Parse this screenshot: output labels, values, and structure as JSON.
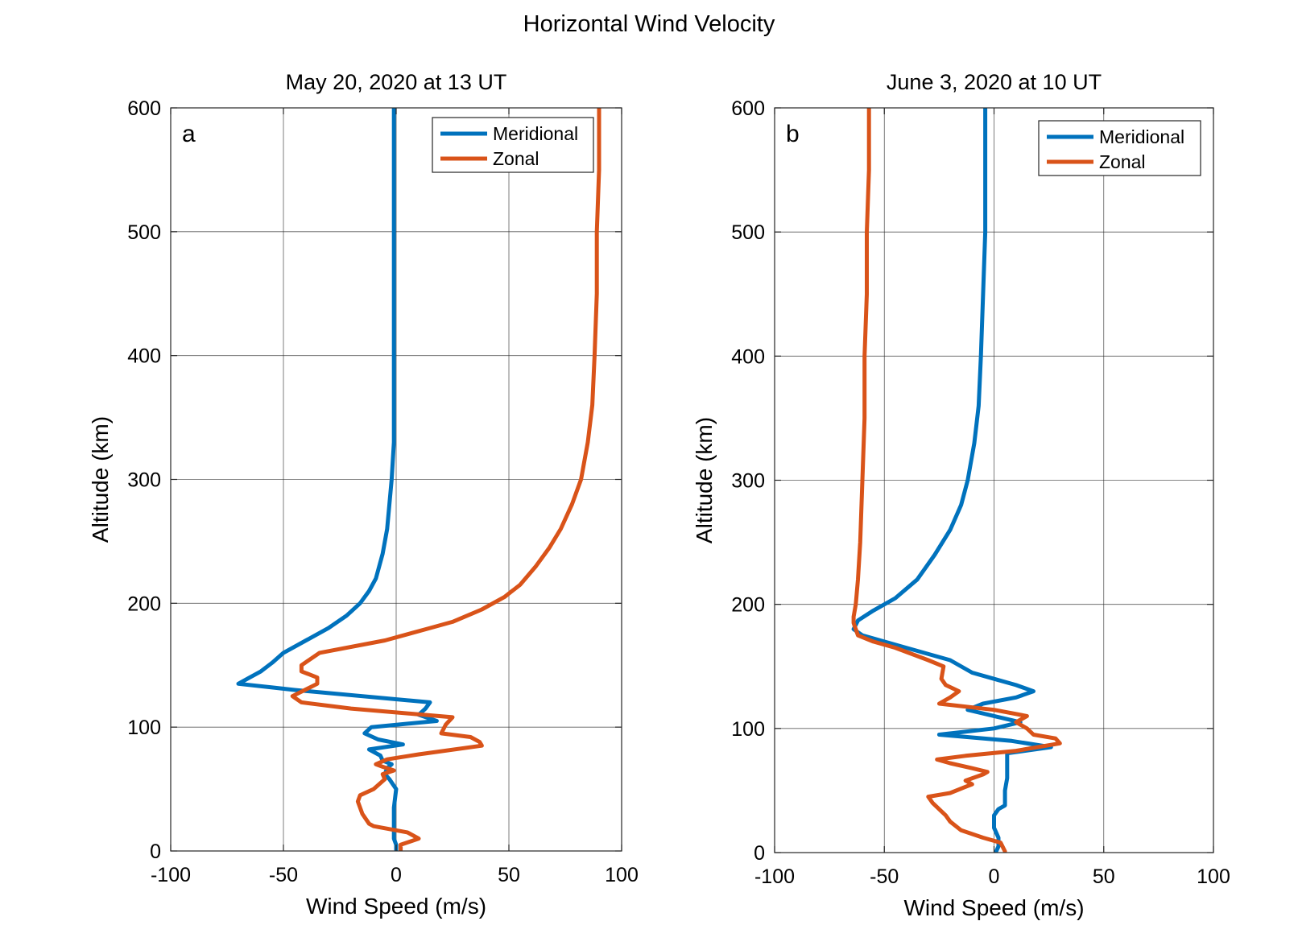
{
  "figure_title": "Horizontal Wind Velocity",
  "colors": {
    "meridional": "#0072BD",
    "zonal": "#D95319",
    "grid": "#262626",
    "axis": "#262626"
  },
  "chart_data": [
    {
      "type": "line",
      "panel_label": "a",
      "title": "May 20, 2020 at 13 UT",
      "xlabel": "Wind Speed (m/s)",
      "ylabel": "Altitude (km)",
      "xlim": [
        -100,
        100
      ],
      "ylim": [
        0,
        600
      ],
      "xticks": [
        -100,
        -50,
        0,
        50,
        100
      ],
      "yticks": [
        0,
        100,
        200,
        300,
        400,
        500,
        600
      ],
      "grid": true,
      "legend": "top-right",
      "series": [
        {
          "name": "Meridional",
          "color": "#0072BD",
          "points": [
            [
              0,
              1
            ],
            [
              0,
              5
            ],
            [
              -1,
              10
            ],
            [
              -1,
              20
            ],
            [
              -1,
              35
            ],
            [
              0,
              50
            ],
            [
              -3,
              58
            ],
            [
              -5,
              62
            ],
            [
              -4,
              67
            ],
            [
              -2,
              70
            ],
            [
              -6,
              73
            ],
            [
              -7,
              77
            ],
            [
              -12,
              82
            ],
            [
              3,
              86
            ],
            [
              -8,
              90
            ],
            [
              -14,
              95
            ],
            [
              -11,
              100
            ],
            [
              18,
              105
            ],
            [
              10,
              110
            ],
            [
              13,
              115
            ],
            [
              15,
              120
            ],
            [
              -45,
              130
            ],
            [
              -55,
              132
            ],
            [
              -70,
              135
            ],
            [
              -65,
              140
            ],
            [
              -60,
              145
            ],
            [
              -55,
              152
            ],
            [
              -50,
              160
            ],
            [
              -40,
              170
            ],
            [
              -30,
              180
            ],
            [
              -22,
              190
            ],
            [
              -16,
              200
            ],
            [
              -12,
              210
            ],
            [
              -9,
              220
            ],
            [
              -6,
              240
            ],
            [
              -4,
              260
            ],
            [
              -3,
              280
            ],
            [
              -2,
              300
            ],
            [
              -1,
              330
            ],
            [
              -1,
              360
            ],
            [
              -1,
              400
            ],
            [
              -1,
              450
            ],
            [
              -1,
              500
            ],
            [
              -1,
              550
            ],
            [
              -1,
              600
            ]
          ]
        },
        {
          "name": "Zonal",
          "color": "#D95319",
          "points": [
            [
              2,
              1
            ],
            [
              2,
              5
            ],
            [
              10,
              10
            ],
            [
              5,
              15
            ],
            [
              -10,
              20
            ],
            [
              -12,
              22
            ],
            [
              -15,
              30
            ],
            [
              -17,
              40
            ],
            [
              -16,
              45
            ],
            [
              -10,
              50
            ],
            [
              -5,
              58
            ],
            [
              -6,
              62
            ],
            [
              -1,
              65
            ],
            [
              -6,
              68
            ],
            [
              -9,
              70
            ],
            [
              -4,
              74
            ],
            [
              10,
              78
            ],
            [
              38,
              85
            ],
            [
              37,
              88
            ],
            [
              33,
              92
            ],
            [
              20,
              95
            ],
            [
              22,
              102
            ],
            [
              25,
              108
            ],
            [
              -20,
              115
            ],
            [
              -42,
              120
            ],
            [
              -46,
              125
            ],
            [
              -35,
              135
            ],
            [
              -35,
              140
            ],
            [
              -42,
              145
            ],
            [
              -42,
              150
            ],
            [
              -34,
              160
            ],
            [
              -5,
              170
            ],
            [
              5,
              175
            ],
            [
              15,
              180
            ],
            [
              25,
              185
            ],
            [
              38,
              195
            ],
            [
              48,
              205
            ],
            [
              55,
              215
            ],
            [
              62,
              230
            ],
            [
              68,
              245
            ],
            [
              73,
              260
            ],
            [
              78,
              280
            ],
            [
              82,
              300
            ],
            [
              85,
              330
            ],
            [
              87,
              360
            ],
            [
              88,
              400
            ],
            [
              89,
              450
            ],
            [
              89,
              500
            ],
            [
              90,
              550
            ],
            [
              90,
              600
            ]
          ]
        }
      ]
    },
    {
      "type": "line",
      "panel_label": "b",
      "title": "June 3, 2020 at 10 UT",
      "xlabel": "Wind Speed (m/s)",
      "ylabel": "Altitude (km)",
      "xlim": [
        -100,
        100
      ],
      "ylim": [
        0,
        600
      ],
      "xticks": [
        -100,
        -50,
        0,
        50,
        100
      ],
      "yticks": [
        0,
        100,
        200,
        300,
        400,
        500,
        600
      ],
      "grid": true,
      "legend": "top-right",
      "series": [
        {
          "name": "Meridional",
          "color": "#0072BD",
          "points": [
            [
              1,
              1
            ],
            [
              2,
              5
            ],
            [
              2,
              12
            ],
            [
              0,
              20
            ],
            [
              0,
              30
            ],
            [
              2,
              35
            ],
            [
              5,
              38
            ],
            [
              5,
              50
            ],
            [
              6,
              60
            ],
            [
              6,
              70
            ],
            [
              6,
              80
            ],
            [
              26,
              85
            ],
            [
              8,
              90
            ],
            [
              -25,
              95
            ],
            [
              0,
              100
            ],
            [
              12,
              105
            ],
            [
              0,
              110
            ],
            [
              -12,
              115
            ],
            [
              -5,
              120
            ],
            [
              10,
              125
            ],
            [
              18,
              130
            ],
            [
              10,
              135
            ],
            [
              0,
              140
            ],
            [
              -10,
              145
            ],
            [
              -20,
              155
            ],
            [
              -40,
              165
            ],
            [
              -60,
              175
            ],
            [
              -64,
              180
            ],
            [
              -62,
              187
            ],
            [
              -55,
              195
            ],
            [
              -45,
              205
            ],
            [
              -35,
              220
            ],
            [
              -27,
              240
            ],
            [
              -20,
              260
            ],
            [
              -15,
              280
            ],
            [
              -12,
              300
            ],
            [
              -9,
              330
            ],
            [
              -7,
              360
            ],
            [
              -6,
              400
            ],
            [
              -5,
              450
            ],
            [
              -4,
              500
            ],
            [
              -4,
              550
            ],
            [
              -4,
              600
            ]
          ]
        },
        {
          "name": "Zonal",
          "color": "#D95319",
          "points": [
            [
              5,
              1
            ],
            [
              3,
              8
            ],
            [
              -5,
              12
            ],
            [
              -15,
              18
            ],
            [
              -20,
              25
            ],
            [
              -22,
              30
            ],
            [
              -28,
              40
            ],
            [
              -30,
              45
            ],
            [
              -20,
              48
            ],
            [
              -13,
              53
            ],
            [
              -10,
              55
            ],
            [
              -13,
              58
            ],
            [
              -5,
              63
            ],
            [
              -3,
              65
            ],
            [
              -10,
              68
            ],
            [
              -20,
              72
            ],
            [
              -26,
              75
            ],
            [
              -13,
              78
            ],
            [
              10,
              82
            ],
            [
              30,
              88
            ],
            [
              28,
              92
            ],
            [
              18,
              95
            ],
            [
              15,
              100
            ],
            [
              10,
              105
            ],
            [
              15,
              110
            ],
            [
              0,
              115
            ],
            [
              -25,
              120
            ],
            [
              -20,
              125
            ],
            [
              -16,
              130
            ],
            [
              -22,
              135
            ],
            [
              -24,
              140
            ],
            [
              -23,
              150
            ],
            [
              -30,
              155
            ],
            [
              -45,
              165
            ],
            [
              -55,
              170
            ],
            [
              -62,
              175
            ],
            [
              -63,
              180
            ],
            [
              -64,
              185
            ],
            [
              -64,
              190
            ],
            [
              -63,
              200
            ],
            [
              -62,
              220
            ],
            [
              -61,
              250
            ],
            [
              -60,
              300
            ],
            [
              -59,
              350
            ],
            [
              -59,
              400
            ],
            [
              -58,
              450
            ],
            [
              -58,
              500
            ],
            [
              -57,
              550
            ],
            [
              -57,
              600
            ]
          ]
        }
      ]
    }
  ]
}
